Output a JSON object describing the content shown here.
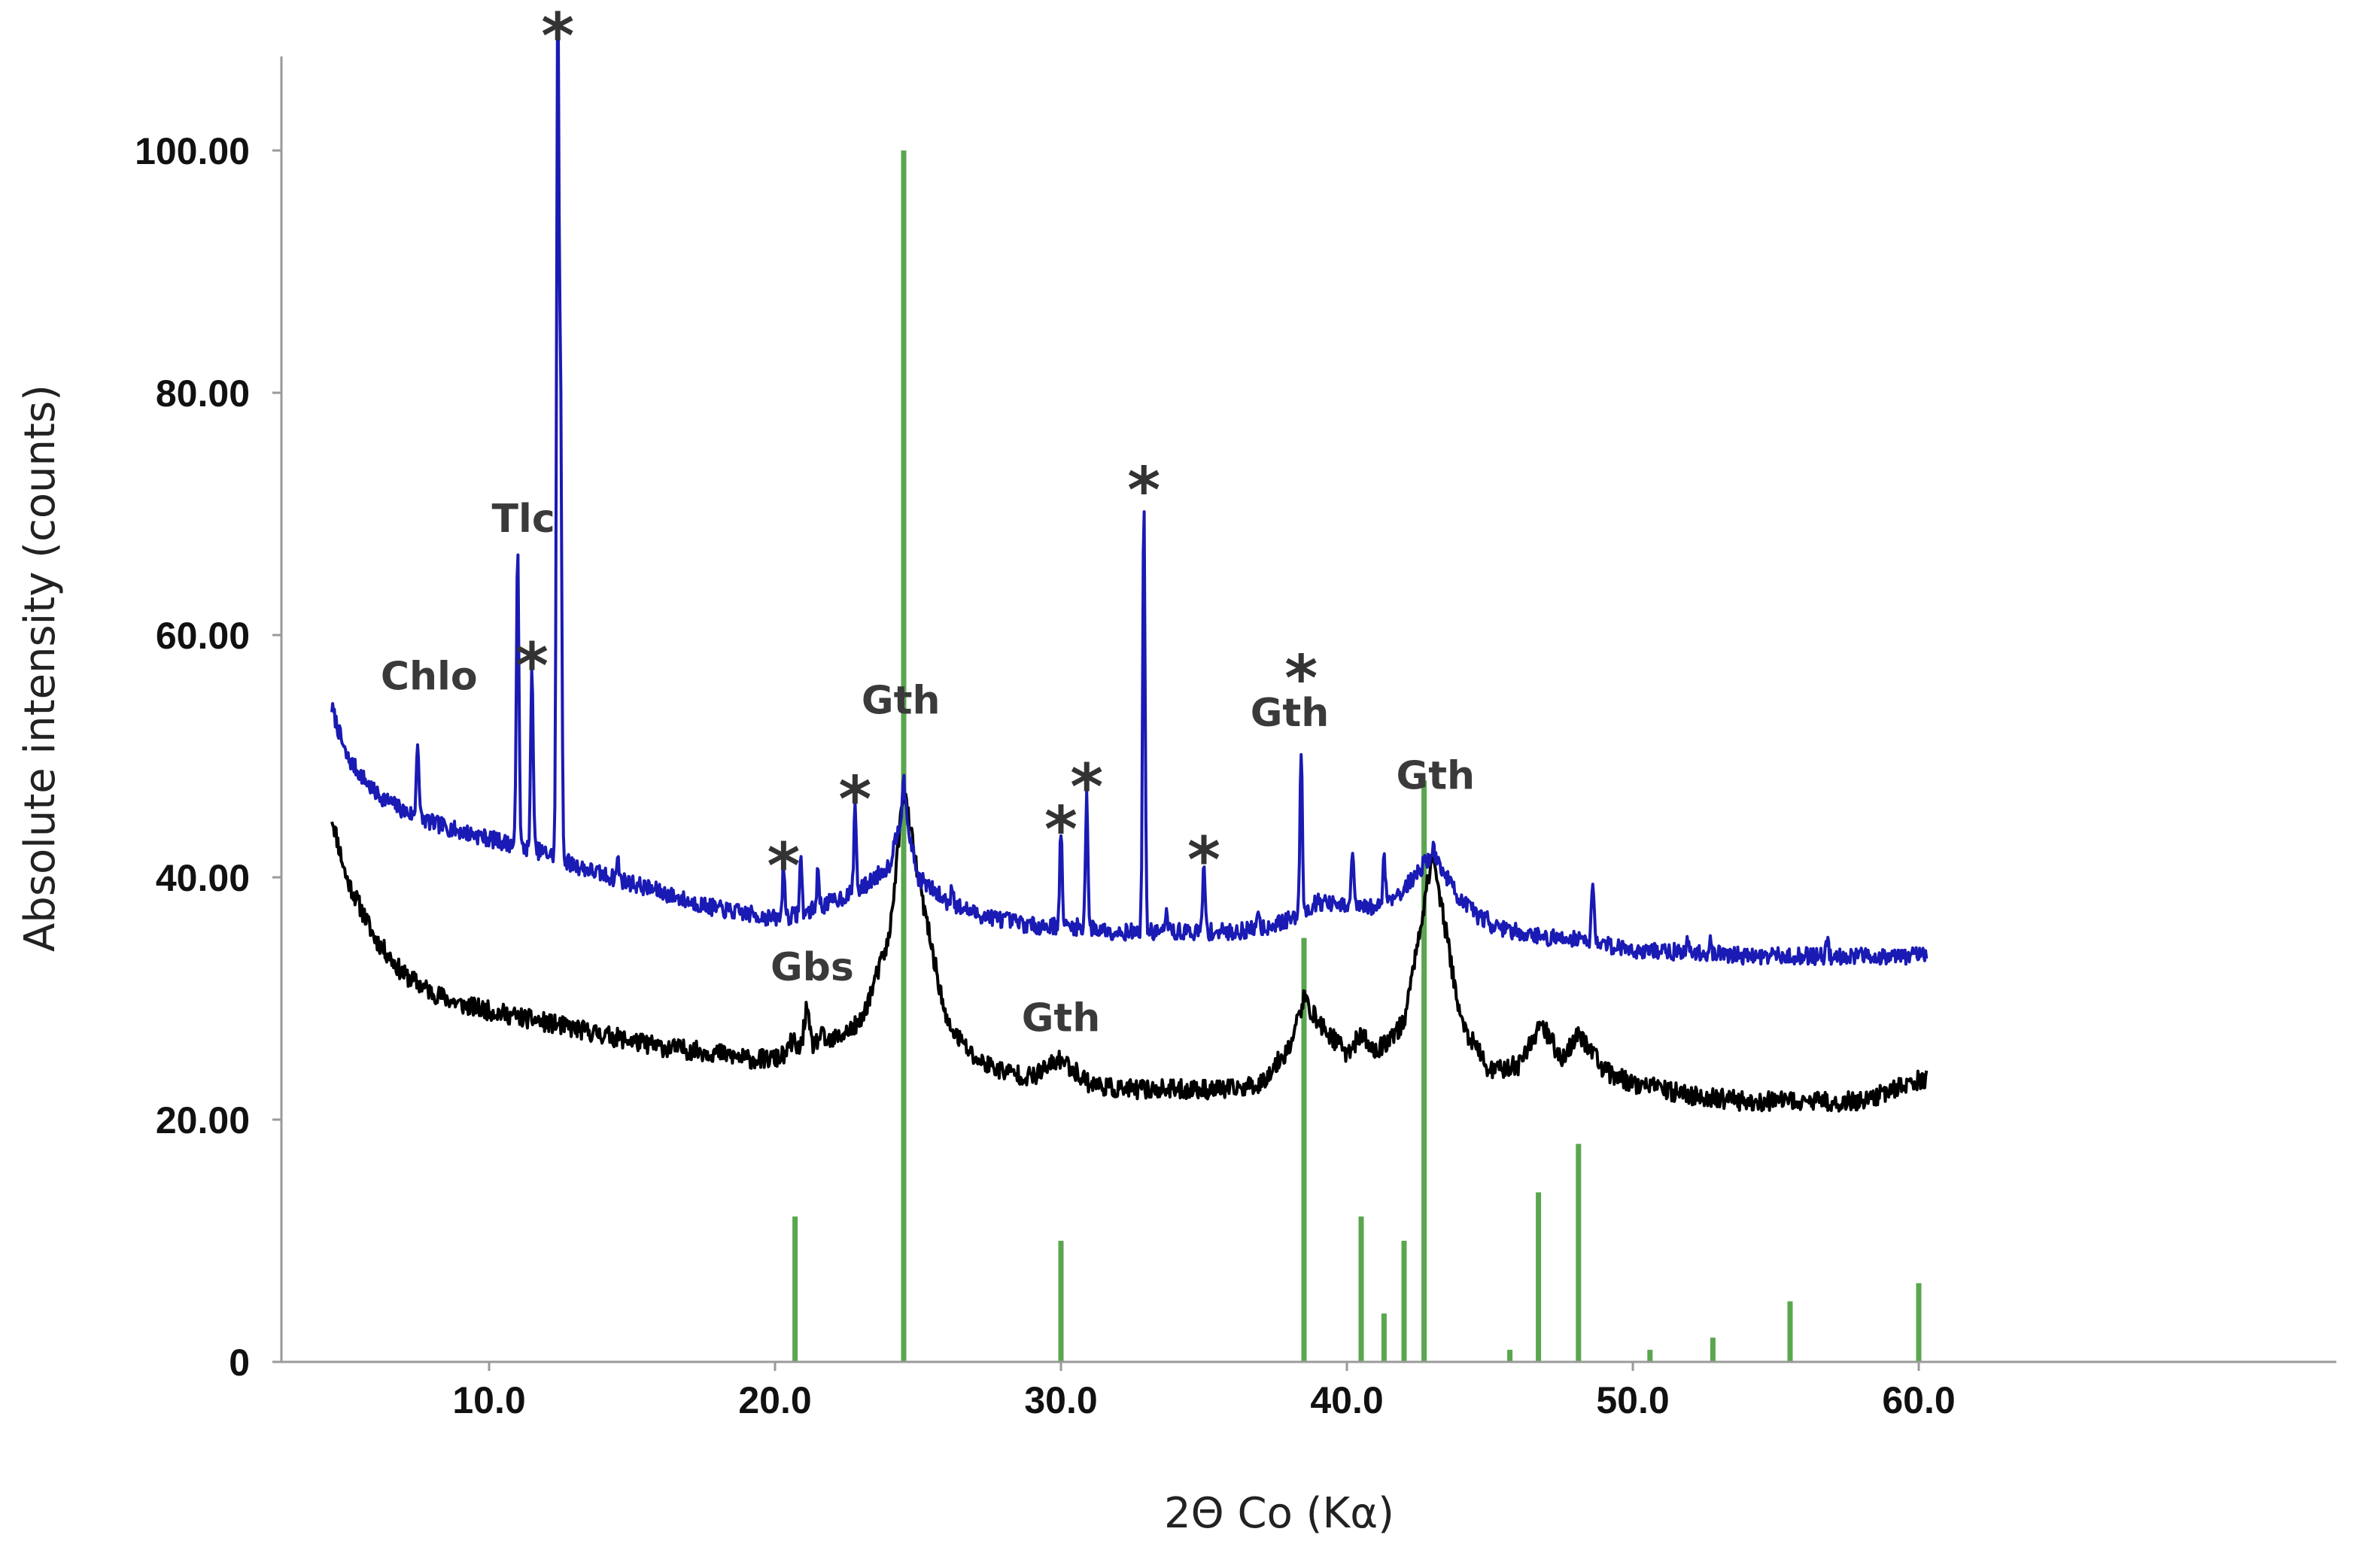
{
  "chart_data": {
    "type": "line",
    "xlabel": "2Θ Co (Kα)",
    "ylabel": "Absolute intensity (counts)",
    "xlim": [
      4.5,
      60.5
    ],
    "ylim": [
      0,
      110
    ],
    "x_ticks": [
      10,
      20,
      30,
      40,
      50,
      60
    ],
    "x_tick_labels": [
      "10.0",
      "20.0",
      "30.0",
      "40.0",
      "50.0",
      "60.0"
    ],
    "y_ticks": [
      0,
      20,
      40,
      60,
      80,
      100
    ],
    "y_tick_labels": [
      "0",
      "20.00",
      "40.00",
      "60.00",
      "80.00",
      "100.00"
    ],
    "grid": false,
    "legend": "none",
    "colors": {
      "blue_pattern": "#1a1ab4",
      "black_pattern": "#000000",
      "reference_sticks": "#5aa64f"
    },
    "series": [
      {
        "color": "blue",
        "baseline": [
          [
            4.5,
            54
          ],
          [
            5,
            50
          ],
          [
            6,
            47
          ],
          [
            7,
            45.5
          ],
          [
            8,
            44.5
          ],
          [
            9,
            43.8
          ],
          [
            10,
            43.2
          ],
          [
            11,
            42.6
          ],
          [
            12,
            42
          ],
          [
            13,
            41
          ],
          [
            14,
            40.2
          ],
          [
            15,
            39.5
          ],
          [
            16,
            38.8
          ],
          [
            17,
            38
          ],
          [
            18,
            37.4
          ],
          [
            19,
            37
          ],
          [
            20,
            36.6
          ],
          [
            21,
            37
          ],
          [
            22,
            38
          ],
          [
            23,
            39
          ],
          [
            24,
            41
          ],
          [
            24.5,
            46
          ],
          [
            25,
            40
          ],
          [
            26,
            38
          ],
          [
            27,
            37
          ],
          [
            28,
            36.5
          ],
          [
            29,
            36
          ],
          [
            30,
            36
          ],
          [
            31,
            35.8
          ],
          [
            32,
            35.5
          ],
          [
            33,
            35.5
          ],
          [
            34,
            35.5
          ],
          [
            35,
            35.5
          ],
          [
            36,
            35.5
          ],
          [
            37,
            35.8
          ],
          [
            38,
            36.5
          ],
          [
            39,
            38
          ],
          [
            40,
            37.5
          ],
          [
            41,
            37.5
          ],
          [
            42,
            39
          ],
          [
            43,
            42
          ],
          [
            44,
            38
          ],
          [
            45,
            36
          ],
          [
            46,
            35.5
          ],
          [
            47,
            35
          ],
          [
            48,
            35
          ],
          [
            49,
            34.5
          ],
          [
            50,
            34
          ],
          [
            52,
            33.8
          ],
          [
            54,
            33.5
          ],
          [
            56,
            33.5
          ],
          [
            58,
            33.5
          ],
          [
            60.3,
            33.5
          ]
        ],
        "peaks": [
          [
            7.5,
            51.5
          ],
          [
            11.0,
            68
          ],
          [
            11.5,
            57.5
          ],
          [
            12.4,
            110
          ],
          [
            12.5,
            79
          ],
          [
            14.5,
            41.5
          ],
          [
            20.3,
            41
          ],
          [
            20.9,
            41.5
          ],
          [
            21.5,
            40.5
          ],
          [
            22.8,
            46
          ],
          [
            24.5,
            48.5
          ],
          [
            26.2,
            39.5
          ],
          [
            30.0,
            44
          ],
          [
            30.9,
            47
          ],
          [
            32.9,
            71
          ],
          [
            33.7,
            37
          ],
          [
            35.0,
            41
          ],
          [
            36.9,
            37.5
          ],
          [
            38.4,
            50.5
          ],
          [
            40.2,
            42.5
          ],
          [
            41.3,
            42
          ],
          [
            43.0,
            42.5
          ],
          [
            44.9,
            37.5
          ],
          [
            48.6,
            40
          ],
          [
            51.9,
            34.5
          ],
          [
            52.7,
            35
          ],
          [
            56.8,
            35
          ]
        ]
      },
      {
        "color": "black",
        "baseline": [
          [
            4.5,
            45
          ],
          [
            5,
            40
          ],
          [
            6,
            35
          ],
          [
            7,
            32
          ],
          [
            8,
            30.5
          ],
          [
            9,
            29.5
          ],
          [
            10,
            29
          ],
          [
            11,
            28.5
          ],
          [
            12,
            28
          ],
          [
            14,
            27
          ],
          [
            16,
            26
          ],
          [
            18,
            25.5
          ],
          [
            19,
            25
          ],
          [
            20,
            25
          ],
          [
            21,
            26
          ],
          [
            22,
            26.5
          ],
          [
            23,
            28
          ],
          [
            24,
            35
          ],
          [
            24.5,
            47.5
          ],
          [
            25,
            40
          ],
          [
            26,
            28
          ],
          [
            27,
            25
          ],
          [
            28,
            24
          ],
          [
            29,
            23.5
          ],
          [
            30,
            25
          ],
          [
            31,
            23
          ],
          [
            32,
            22.5
          ],
          [
            34,
            22.5
          ],
          [
            36,
            22.5
          ],
          [
            37,
            23
          ],
          [
            38,
            26
          ],
          [
            38.5,
            30
          ],
          [
            39,
            28
          ],
          [
            40,
            25.5
          ],
          [
            40.5,
            27
          ],
          [
            41,
            25.5
          ],
          [
            42,
            28
          ],
          [
            42.5,
            35
          ],
          [
            43,
            42
          ],
          [
            43.5,
            35
          ],
          [
            44,
            28
          ],
          [
            45,
            24
          ],
          [
            46,
            24.5
          ],
          [
            46.8,
            28
          ],
          [
            47.5,
            25
          ],
          [
            48.1,
            27
          ],
          [
            48.5,
            26
          ],
          [
            49,
            24
          ],
          [
            50,
            23
          ],
          [
            52,
            22
          ],
          [
            54,
            21.5
          ],
          [
            56,
            21.5
          ],
          [
            58,
            21.5
          ],
          [
            60.3,
            23.5
          ]
        ],
        "peaks": [
          [
            20.6,
            26.5
          ],
          [
            21.1,
            29
          ],
          [
            21.6,
            27
          ]
        ]
      }
    ],
    "reference_sticks": [
      [
        20.7,
        12
      ],
      [
        24.5,
        100
      ],
      [
        30.0,
        10
      ],
      [
        38.5,
        35
      ],
      [
        40.5,
        12
      ],
      [
        41.3,
        4
      ],
      [
        42.0,
        10
      ],
      [
        42.7,
        48
      ],
      [
        45.7,
        1
      ],
      [
        46.7,
        14
      ],
      [
        48.1,
        18
      ],
      [
        50.6,
        1
      ],
      [
        52.8,
        2
      ],
      [
        55.5,
        5
      ],
      [
        60.0,
        6.5
      ]
    ],
    "annotations": [
      {
        "text": "*",
        "x": 12.4,
        "y": 110.5,
        "kind": "star"
      },
      {
        "text": "*",
        "x": 11.5,
        "y": 58.5,
        "kind": "star"
      },
      {
        "text": "*",
        "x": 20.3,
        "y": 42,
        "kind": "star"
      },
      {
        "text": "*",
        "x": 22.8,
        "y": 47.5,
        "kind": "star"
      },
      {
        "text": "*",
        "x": 30.0,
        "y": 45,
        "kind": "star"
      },
      {
        "text": "*",
        "x": 30.9,
        "y": 48.5,
        "kind": "star"
      },
      {
        "text": "*",
        "x": 32.9,
        "y": 73,
        "kind": "star"
      },
      {
        "text": "*",
        "x": 35.0,
        "y": 42.5,
        "kind": "star"
      },
      {
        "text": "*",
        "x": 38.4,
        "y": 57.5,
        "kind": "star"
      },
      {
        "text": "Chlo",
        "x": 7.9,
        "y": 55.5,
        "kind": "label"
      },
      {
        "text": "Tlc",
        "x": 11.2,
        "y": 68.5,
        "kind": "label"
      },
      {
        "text": "Gth",
        "x": 24.4,
        "y": 53.5,
        "kind": "label"
      },
      {
        "text": "Gth",
        "x": 38.0,
        "y": 52.5,
        "kind": "label"
      },
      {
        "text": "Gth",
        "x": 43.1,
        "y": 47.3,
        "kind": "label"
      },
      {
        "text": "Gbs",
        "x": 21.3,
        "y": 31.5,
        "kind": "label"
      },
      {
        "text": "Gth",
        "x": 30.0,
        "y": 27.3,
        "kind": "label"
      }
    ]
  }
}
